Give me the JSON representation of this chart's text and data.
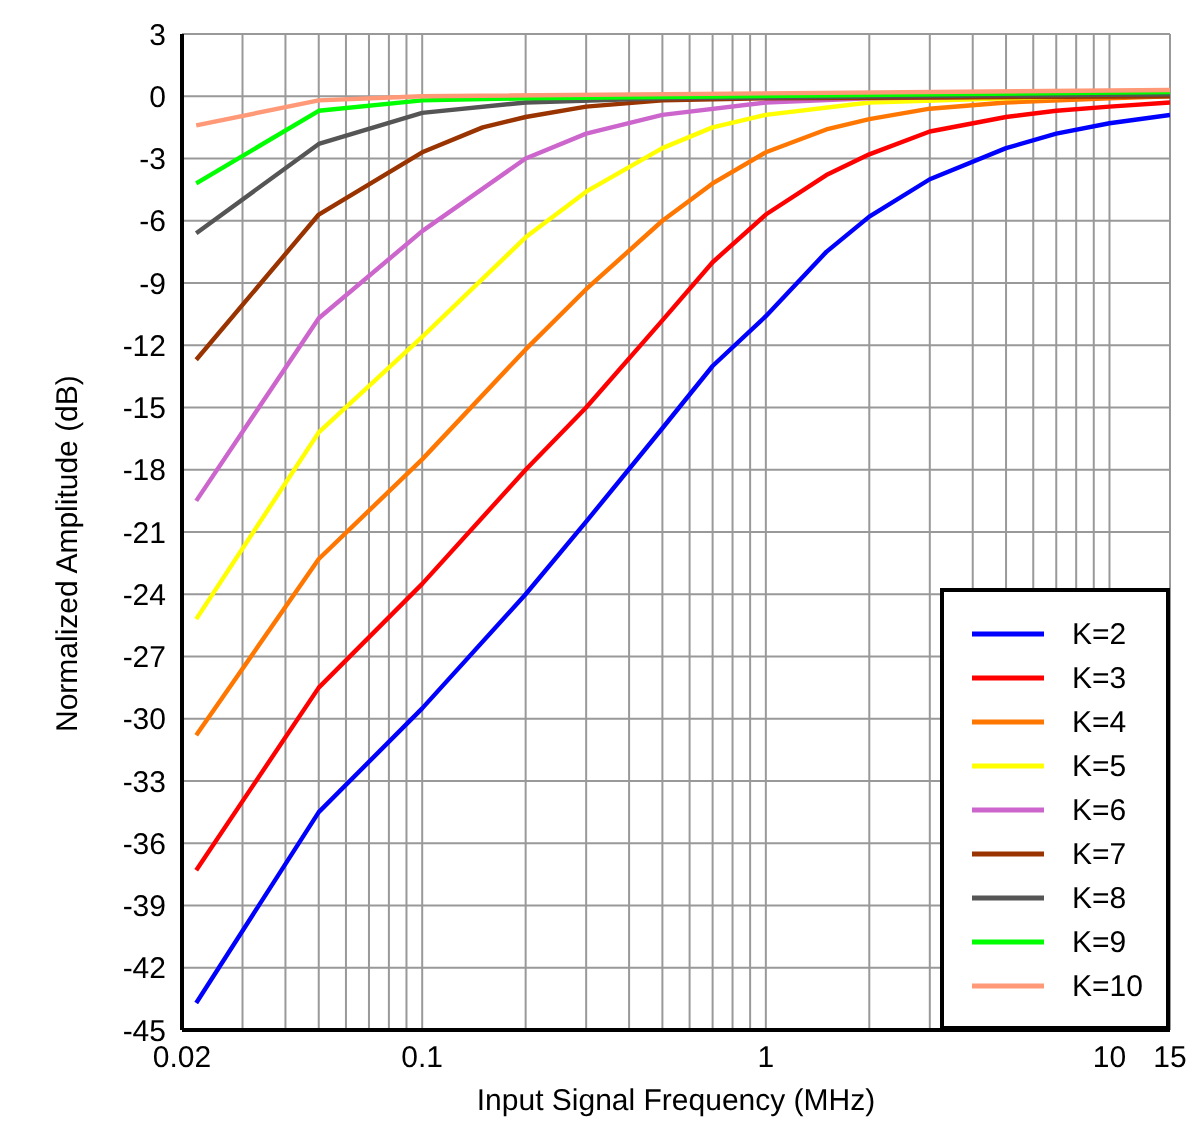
{
  "chart_data": {
    "type": "line",
    "xlabel": "Input Signal Frequency (MHz)",
    "ylabel": "Normalized Amplitude (dB)",
    "log": "x",
    "grid": true,
    "legend": "bottom right",
    "marker": "none",
    "line_style": "solid",
    "xlim": [
      0.02,
      15
    ],
    "ylim": [
      -45,
      3
    ],
    "xticks": [
      0.02,
      {
        "value": 0.03,
        "label": null
      },
      {
        "value": 0.04,
        "label": null
      },
      {
        "value": 0.05,
        "label": null
      },
      {
        "value": 0.06,
        "label": null
      },
      {
        "value": 0.07,
        "label": null
      },
      {
        "value": 0.08,
        "label": null
      },
      {
        "value": 0.09,
        "label": null
      },
      0.1,
      {
        "value": 0.2,
        "label": null
      },
      {
        "value": 0.3,
        "label": null
      },
      {
        "value": 0.4,
        "label": null
      },
      {
        "value": 0.5,
        "label": null
      },
      {
        "value": 0.6,
        "label": null
      },
      {
        "value": 0.7,
        "label": null
      },
      {
        "value": 0.8,
        "label": null
      },
      {
        "value": 0.9,
        "label": null
      },
      1,
      {
        "value": 2,
        "label": null
      },
      {
        "value": 3,
        "label": null
      },
      {
        "value": 4,
        "label": null
      },
      {
        "value": 5,
        "label": null
      },
      {
        "value": 6,
        "label": null
      },
      {
        "value": 7,
        "label": null
      },
      {
        "value": 8,
        "label": null
      },
      {
        "value": 9,
        "label": null
      },
      10,
      15
    ],
    "yticks": [
      3,
      0,
      -3,
      -6,
      -9,
      -12,
      -15,
      -18,
      -21,
      -24,
      -27,
      -30,
      -33,
      -36,
      -39,
      -42,
      -45
    ],
    "series": [
      {
        "name": "K=2",
        "color": "#0000ff",
        "x": [
          0.022,
          0.05,
          0.1,
          0.2,
          0.3,
          0.5,
          0.7,
          1,
          1.5,
          2,
          3,
          5,
          7,
          10,
          15
        ],
        "values": [
          -43.7,
          -34.5,
          -29.5,
          -24,
          -20.5,
          -16,
          -13,
          -10.6,
          -7.5,
          -5.8,
          -4,
          -2.5,
          -1.8,
          -1.3,
          -0.9
        ]
      },
      {
        "name": "K=3",
        "color": "#ff0000",
        "x": [
          0.022,
          0.05,
          0.1,
          0.2,
          0.3,
          0.5,
          0.7,
          1,
          1.5,
          2,
          3,
          5,
          7,
          10,
          15
        ],
        "values": [
          -37.3,
          -28.5,
          -23.5,
          -18,
          -15,
          -10.8,
          -8,
          -5.7,
          -3.8,
          -2.8,
          -1.7,
          -1,
          -0.7,
          -0.5,
          -0.3
        ]
      },
      {
        "name": "K=4",
        "color": "#ff7700",
        "x": [
          0.022,
          0.05,
          0.1,
          0.2,
          0.3,
          0.5,
          0.7,
          1,
          1.5,
          2,
          3,
          5,
          10,
          15
        ],
        "values": [
          -30.8,
          -22.3,
          -17.5,
          -12.2,
          -9.3,
          -6,
          -4.2,
          -2.7,
          -1.6,
          -1.1,
          -0.6,
          -0.3,
          -0.1,
          0
        ]
      },
      {
        "name": "K=5",
        "color": "#ffff00",
        "x": [
          0.022,
          0.05,
          0.1,
          0.2,
          0.3,
          0.5,
          0.7,
          1,
          2,
          5,
          15
        ],
        "values": [
          -25.2,
          -16.2,
          -11.6,
          -6.8,
          -4.6,
          -2.5,
          -1.5,
          -0.9,
          -0.3,
          -0.1,
          0.1
        ]
      },
      {
        "name": "K=6",
        "color": "#cc66cc",
        "x": [
          0.022,
          0.05,
          0.1,
          0.2,
          0.3,
          0.5,
          1,
          2,
          15
        ],
        "values": [
          -19.5,
          -10.7,
          -6.5,
          -3,
          -1.8,
          -0.9,
          -0.3,
          -0.1,
          0.1
        ]
      },
      {
        "name": "K=7",
        "color": "#993300",
        "x": [
          0.022,
          0.05,
          0.1,
          0.15,
          0.2,
          0.3,
          0.5,
          1,
          15
        ],
        "values": [
          -12.7,
          -5.7,
          -2.7,
          -1.5,
          -1,
          -0.5,
          -0.2,
          -0.1,
          0
        ]
      },
      {
        "name": "K=8",
        "color": "#555555",
        "x": [
          0.022,
          0.05,
          0.1,
          0.2,
          0.5,
          15
        ],
        "values": [
          -6.6,
          -2.3,
          -0.8,
          -0.3,
          -0.1,
          0.1
        ]
      },
      {
        "name": "K=9",
        "color": "#00ff00",
        "x": [
          0.022,
          0.05,
          0.1,
          0.2,
          15
        ],
        "values": [
          -4.2,
          -0.7,
          -0.2,
          -0.1,
          0.2
        ]
      },
      {
        "name": "K=10",
        "color": "#ff9977",
        "x": [
          0.022,
          0.05,
          0.1,
          15
        ],
        "values": [
          -1.4,
          -0.2,
          0,
          0.3
        ]
      }
    ]
  }
}
